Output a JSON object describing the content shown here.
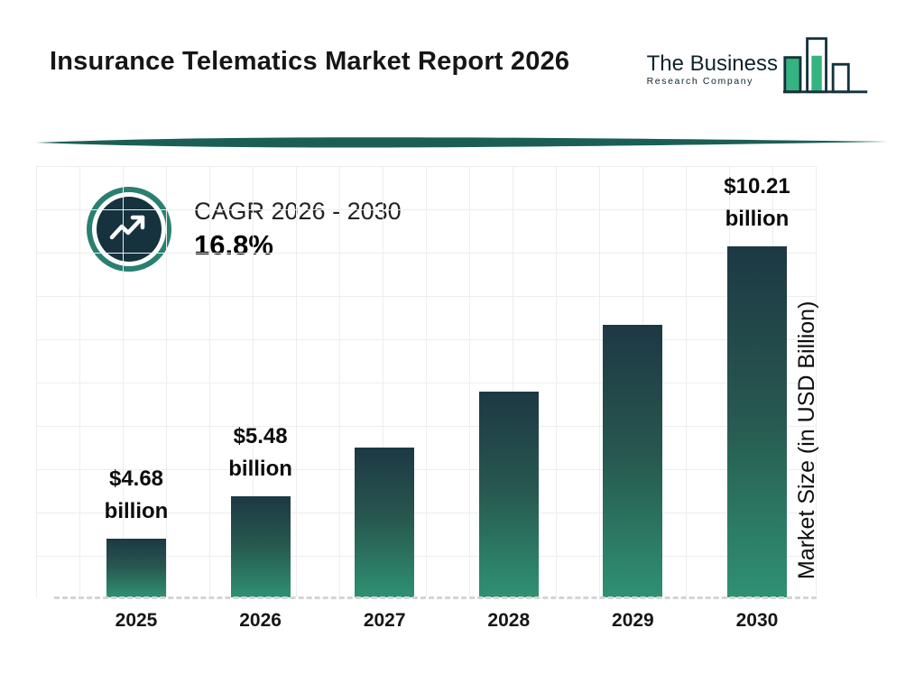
{
  "header": {
    "title": "Insurance Telematics Market Report 2026"
  },
  "logo": {
    "line1": "The Business",
    "line2": "Research Company"
  },
  "chart_data": {
    "type": "bar",
    "title": "Insurance Telematics Market Report 2026",
    "categories": [
      "2025",
      "2026",
      "2027",
      "2028",
      "2029",
      "2030"
    ],
    "values": [
      4.68,
      5.48,
      6.4,
      7.47,
      8.73,
      10.21
    ],
    "unit": "USD Billion",
    "xlabel": "",
    "ylabel": "Market Size (in USD Billion)",
    "ylim": [
      3.57,
      10.21
    ],
    "grid": true,
    "legend": "none",
    "bar_labels": [
      {
        "index": 0,
        "lines": [
          "$4.68",
          "billion"
        ]
      },
      {
        "index": 1,
        "lines": [
          "$5.48",
          "billion"
        ]
      },
      {
        "index": 5,
        "lines": [
          "$10.21",
          "billion"
        ]
      }
    ],
    "cagr": {
      "label": "CAGR 2026 - 2030",
      "value": "16.8%"
    },
    "colors": {
      "bar_top": "#1d3844",
      "bar_bottom": "#2f9173",
      "accent_teal": "#2a8070",
      "navy": "#16323e",
      "logo_green": "#35b380"
    }
  }
}
